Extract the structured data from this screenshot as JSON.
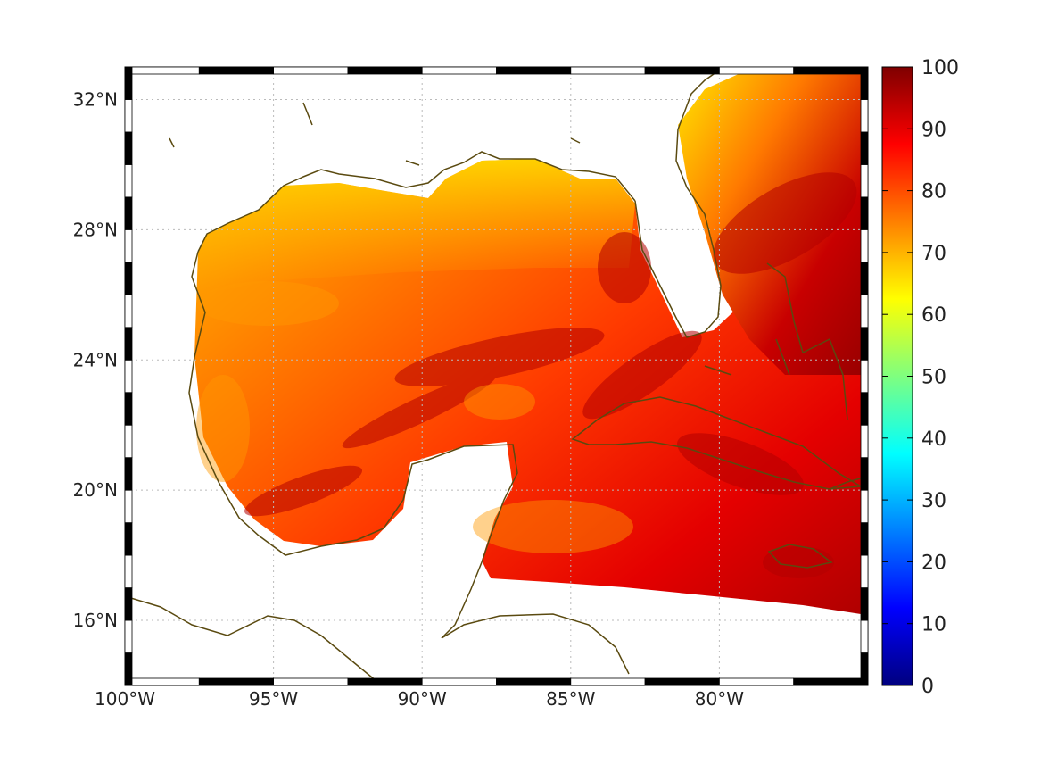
{
  "map": {
    "lon_range": [
      -100,
      -75
    ],
    "lat_range": [
      14,
      33
    ],
    "lon_ticks": [
      {
        "value": -100,
        "label": "100°W"
      },
      {
        "value": -95,
        "label": "95°W"
      },
      {
        "value": -90,
        "label": "90°W"
      },
      {
        "value": -85,
        "label": "85°W"
      },
      {
        "value": -80,
        "label": "80°W"
      }
    ],
    "lat_ticks": [
      {
        "value": 16,
        "label": "16°N"
      },
      {
        "value": 20,
        "label": "20°N"
      },
      {
        "value": 24,
        "label": "24°N"
      },
      {
        "value": 28,
        "label": "28°N"
      },
      {
        "value": 32,
        "label": "32°N"
      }
    ],
    "grid": true,
    "coastline_color": "#5a4a10",
    "colormap": "jet"
  },
  "colorbar": {
    "min": 0,
    "max": 100,
    "ticks": [
      "0",
      "10",
      "20",
      "30",
      "40",
      "50",
      "60",
      "70",
      "80",
      "90",
      "100"
    ]
  }
}
